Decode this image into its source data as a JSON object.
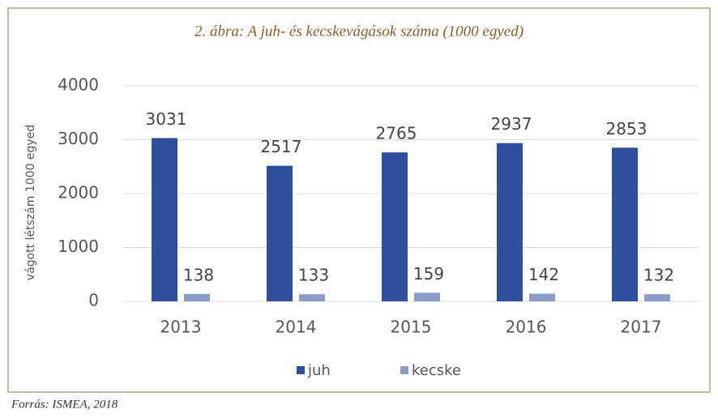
{
  "chart_data": {
    "type": "bar",
    "title": "2. ábra: A juh- és kecskevágások száma (1000 egyed)",
    "y_label": "vágott létszám 1000 egyed",
    "categories": [
      "2013",
      "2014",
      "2015",
      "2016",
      "2017"
    ],
    "series": [
      {
        "name": "juh",
        "color": "#2d4f9e",
        "values": [
          3031,
          2517,
          2765,
          2937,
          2853
        ]
      },
      {
        "name": "kecske",
        "color": "#8b9cc6",
        "values": [
          138,
          133,
          159,
          142,
          132
        ]
      }
    ],
    "ylim": [
      0,
      4000
    ],
    "yticks": [
      0,
      1000,
      2000,
      3000,
      4000
    ],
    "grid": true,
    "legend": "bottom",
    "source": "Forrás: ISMEA, 2018"
  }
}
